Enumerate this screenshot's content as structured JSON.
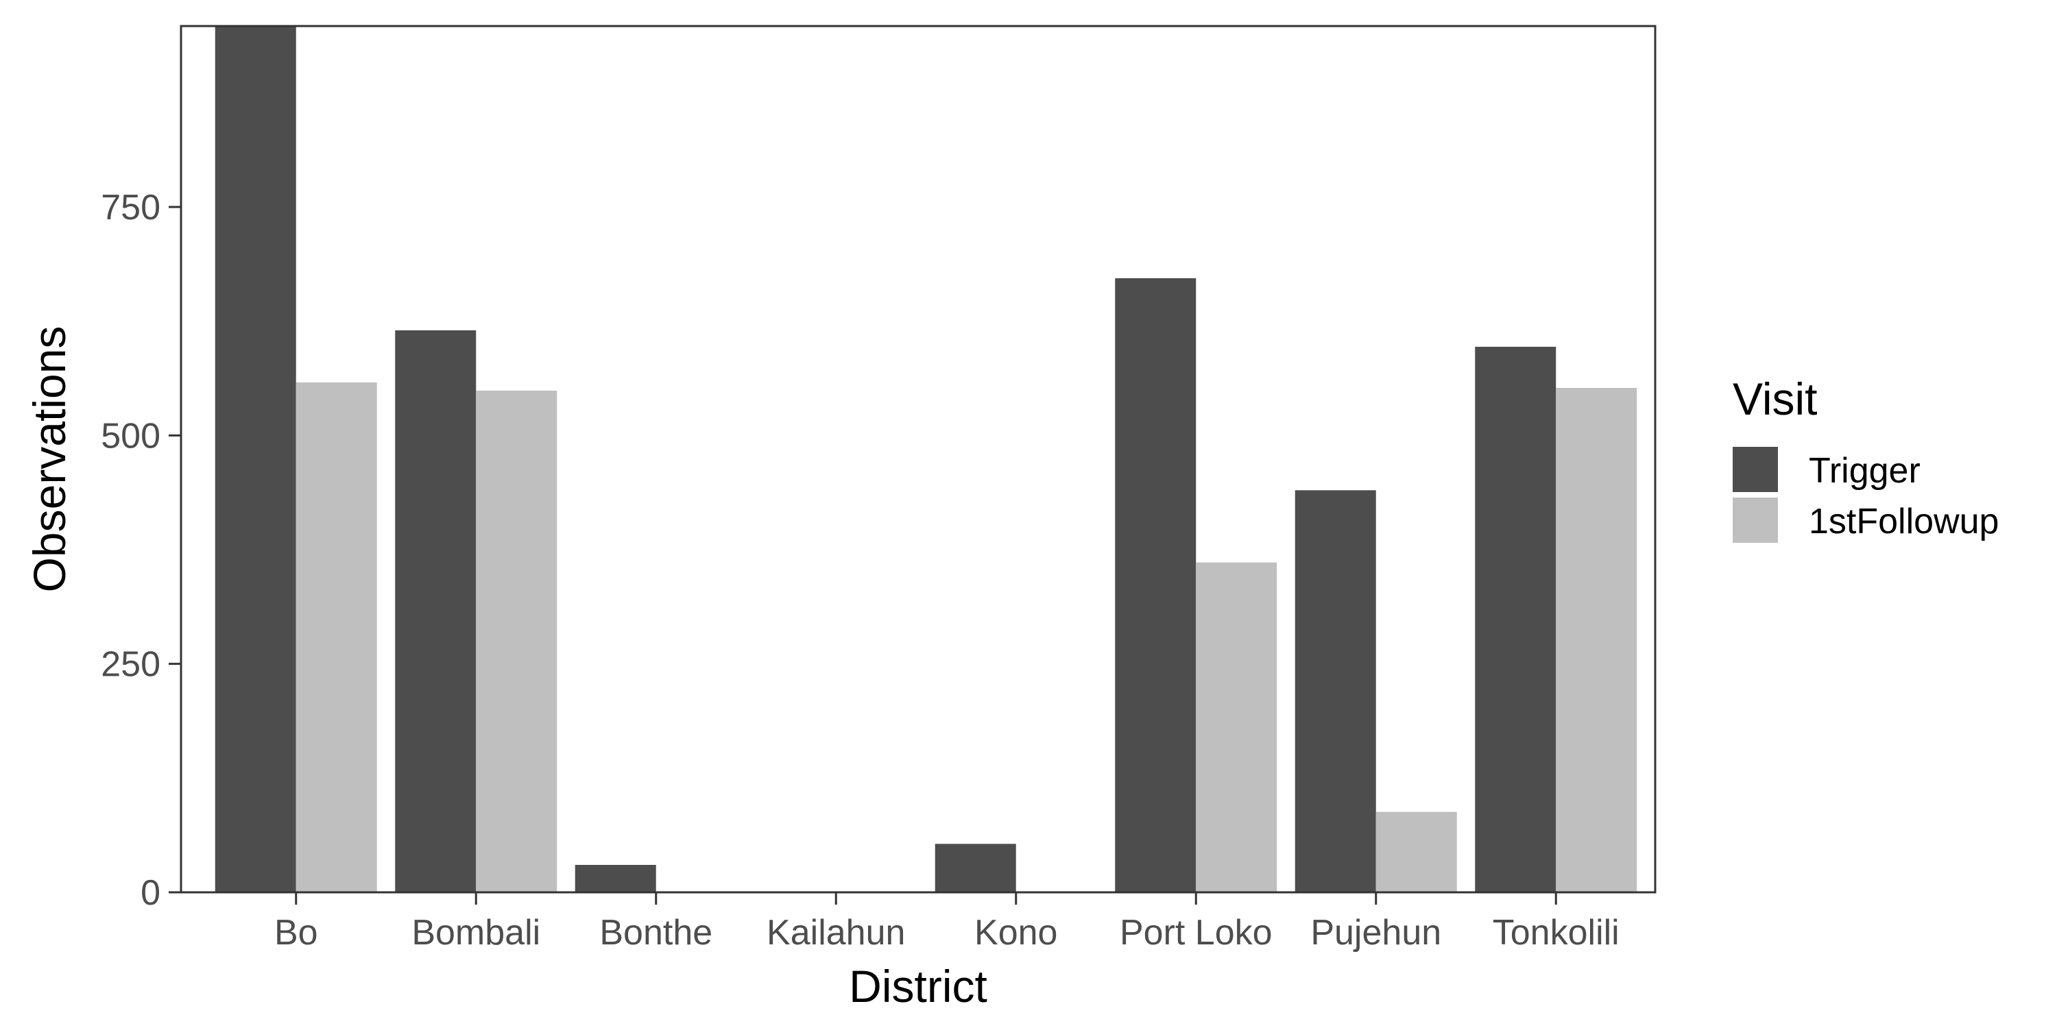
{
  "chart_data": {
    "type": "bar",
    "title": "",
    "xlabel": "District",
    "ylabel": "Observations",
    "categories": [
      "Bo",
      "Bombali",
      "Bonthe",
      "Kailahun",
      "Kono",
      "Port Loko",
      "Pujehun",
      "Tonkolili"
    ],
    "series": [
      {
        "name": "Trigger",
        "color": "#4d4d4d",
        "values": [
          948,
          615,
          30,
          0,
          53,
          672,
          440,
          597
        ]
      },
      {
        "name": "1stFollowup",
        "color": "#bfbfbf",
        "values": [
          558,
          549,
          0,
          0,
          0,
          361,
          88,
          552
        ]
      }
    ],
    "ylim": [
      0,
      948
    ],
    "yticks": [
      0,
      250,
      500,
      750
    ],
    "ytick_labels": [
      "0",
      "250",
      "500",
      "750"
    ],
    "grid": false,
    "legend": {
      "title": "Visit",
      "position": "right"
    }
  }
}
